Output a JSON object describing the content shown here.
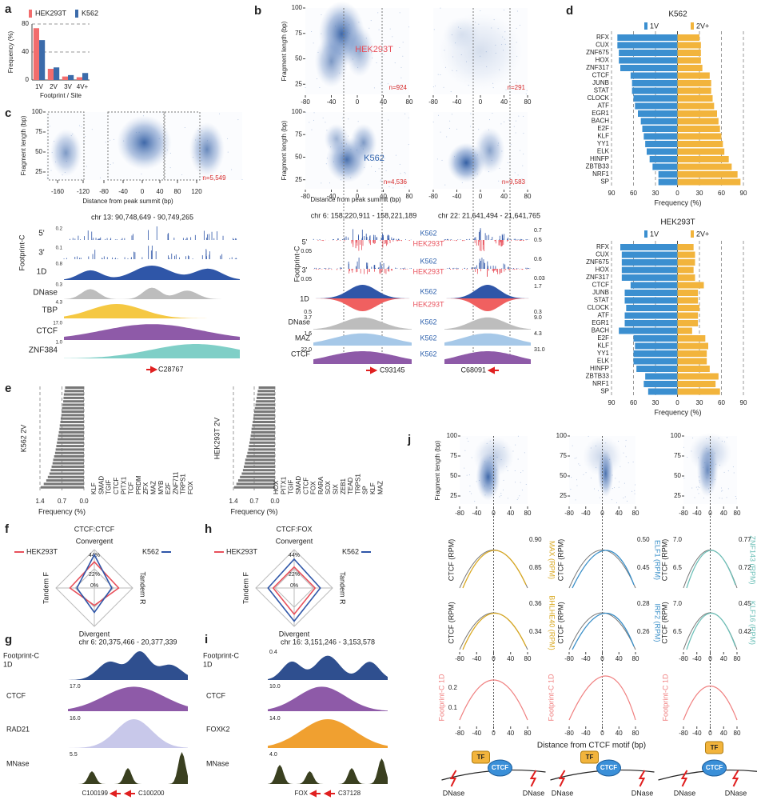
{
  "a": {
    "label": "a",
    "type": "bar",
    "categories": [
      "1V",
      "2V",
      "3V",
      "4V+"
    ],
    "series": [
      {
        "name": "HEK293T",
        "color": "#f26d6d",
        "values": [
          74,
          16,
          5,
          4
        ]
      },
      {
        "name": "K562",
        "color": "#3b6baa",
        "values": [
          57,
          18,
          7,
          10
        ]
      }
    ],
    "ylim": [
      0,
      80
    ],
    "yticks": [
      0,
      40,
      80
    ],
    "grid": true,
    "ylabel": "Frequency (%)",
    "xlabel": "Footprint / Site"
  },
  "b": {
    "label": "b",
    "rows": [
      "HEK293T",
      "K562"
    ],
    "n_labels": [
      "n=924",
      "n=291",
      "n=4,536",
      "n=9,583"
    ],
    "xlim": [
      -80,
      80
    ],
    "xticks": [
      -80,
      -40,
      0,
      40,
      80
    ],
    "ylim": [
      15,
      100
    ],
    "yticks": [
      25,
      50,
      75,
      100
    ],
    "xlabel": "Distance from peak summit (bp)",
    "ylabel": "Fragment length (bp)",
    "loci": [
      "chr 6: 158,220,911 - 158,221,189",
      "chr 22: 21,641,494 - 21,641,765"
    ],
    "locus_ids": [
      "C93145",
      "C68091"
    ],
    "track_group": "Footprint-C",
    "tracks": [
      "5'",
      "3'",
      "1D",
      "DNase",
      "MAZ",
      "CTCF"
    ],
    "cell_labels": [
      "K562",
      "HEK293T",
      "K562",
      "HEK293T",
      "K562",
      "HEK293T",
      "K562",
      "K562",
      "K562"
    ],
    "left_scales": [
      "0.05",
      "0.05",
      "0.5",
      "3.7",
      "1.6",
      "22.0"
    ],
    "right_scales": [
      "0.7",
      "0.5",
      "0.6",
      "0.03",
      "1.7",
      "0.3",
      "9.0",
      "4.3",
      "31.0"
    ]
  },
  "c": {
    "label": "c",
    "xticks": [
      -160,
      -120,
      -80,
      -40,
      0,
      40,
      80,
      120
    ],
    "ylim": [
      15,
      100
    ],
    "yticks": [
      25,
      50,
      75,
      100
    ],
    "n_label": "n=5,549",
    "xlabel": "Distance from peak summit (bp)",
    "ylabel": "Fragment length (bp)",
    "locus": "chr 13: 90,748,649 - 90,749,265",
    "locus_id": "C28767",
    "track_group": "Footprint-C",
    "tracks": [
      "5'",
      "3'",
      "1D",
      "DNase",
      "TBP",
      "CTCF",
      "ZNF384"
    ],
    "scales": [
      "0.2",
      "0.1",
      "0.8",
      "0.3",
      "4.3",
      "17.0",
      "1.0"
    ]
  },
  "d": {
    "label": "d",
    "type": "bar",
    "xlim": [
      -90,
      90
    ],
    "xticks": [
      {
        "value": -90,
        "label": "90"
      },
      {
        "value": -60,
        "label": "60"
      },
      {
        "value": -30,
        "label": "30"
      },
      0,
      30,
      60,
      90
    ],
    "xlabel": "Frequency (%)",
    "charts": [
      {
        "title": "K562",
        "categories": [
          "RFX",
          "CUX",
          "ZNF675",
          "HOX",
          "ZNF317",
          "CTCF",
          "JUNB",
          "STAT",
          "CLOCK",
          "ATF",
          "EGR1",
          "BACH",
          "E2F",
          "KLF",
          "YY1",
          "ELK",
          "HINFP",
          "ZBTB33",
          "NRF1",
          "SP"
        ],
        "series": [
          {
            "name": "1V",
            "color": "#3b8fd0",
            "values": [
              82,
              82,
              80,
              80,
              78,
              64,
              62,
              62,
              60,
              58,
              54,
              50,
              48,
              46,
              44,
              42,
              38,
              34,
              26,
              26
            ]
          },
          {
            "name": "2V+",
            "color": "#f2b43c",
            "values": [
              30,
              32,
              32,
              32,
              34,
              44,
              46,
              46,
              48,
              50,
              54,
              56,
              58,
              60,
              62,
              64,
              70,
              74,
              82,
              86
            ]
          }
        ]
      },
      {
        "title": "HEK293T",
        "categories": [
          "RFX",
          "CUX",
          "ZNF675",
          "HOX",
          "ZNF317",
          "CTCF",
          "JUNB",
          "STAT",
          "CLOCK",
          "ATF",
          "EGR1",
          "BACH",
          "E2F",
          "KLF",
          "YY1",
          "ELK",
          "HINFP",
          "ZBTB33",
          "NRF1",
          "SP"
        ],
        "series": [
          {
            "name": "1V",
            "color": "#3b8fd0",
            "values": [
              78,
              76,
              76,
              76,
              76,
              64,
              72,
              72,
              70,
              72,
              72,
              80,
              60,
              58,
              60,
              60,
              56,
              44,
              46,
              40
            ]
          },
          {
            "name": "2V+",
            "color": "#f2b43c",
            "values": [
              22,
              24,
              24,
              22,
              24,
              36,
              28,
              28,
              30,
              28,
              28,
              20,
              38,
              42,
              40,
              40,
              44,
              56,
              52,
              58
            ]
          }
        ]
      }
    ]
  },
  "e": {
    "label": "e",
    "xlim": [
      1.4,
      0
    ],
    "xticks": [
      1.4,
      0.7,
      {
        "value": 0,
        "label": "0.0"
      }
    ],
    "xlabel": "Frequency (%)",
    "groups": [
      {
        "name": "K562 2V",
        "color": "#2f62ad",
        "motifs": [
          "KLF",
          "SMAD",
          "TGIF",
          "CTCF",
          "PITX1",
          "TCF",
          "PRDM",
          "ZFX",
          "MAZ",
          "MYB",
          "E2F",
          "ZNF711",
          "TRPS1",
          "FOX"
        ],
        "bar_values": [
          0.6,
          0.62,
          0.64,
          0.65,
          0.66,
          0.68,
          0.7,
          0.71,
          0.72,
          0.74,
          0.75,
          0.77,
          0.78,
          0.8,
          0.82,
          0.84,
          0.86,
          0.88,
          0.9,
          0.92,
          0.95,
          0.98,
          1.0,
          1.03,
          1.06,
          1.1,
          1.15,
          1.2,
          1.28,
          1.38
        ]
      },
      {
        "name": "HEK293T 2V",
        "color": "#e8505b",
        "motifs": [
          "HOX",
          "PITX1",
          "TGIF",
          "SMAD",
          "CTCF",
          "FOX",
          "RARA",
          "SOX",
          "SIX",
          "ZEB1",
          "TEAD",
          "TRPS1",
          "SP",
          "KLF",
          "MAZ"
        ],
        "bar_values": [
          0.55,
          0.58,
          0.6,
          0.62,
          0.64,
          0.66,
          0.68,
          0.7,
          0.72,
          0.73,
          0.75,
          0.77,
          0.79,
          0.8,
          0.82,
          0.84,
          0.86,
          0.88,
          0.9,
          0.93,
          0.96,
          1.0,
          1.02,
          1.05,
          1.08,
          1.12,
          1.18,
          1.24,
          1.3,
          1.38
        ]
      }
    ]
  },
  "f": {
    "label": "f",
    "type": "radar",
    "title": "CTCF:CTCF",
    "axes": [
      "Convergent",
      "Tandem R",
      "Divergent",
      "Tandem F"
    ],
    "rticks": [
      {
        "value": 0,
        "label": "0%"
      },
      {
        "value": 22,
        "label": "22%"
      },
      {
        "value": 44,
        "label": "44%"
      }
    ],
    "series": [
      {
        "name": "HEK293T",
        "color": "#e8505b",
        "values": [
          30,
          28,
          20,
          28
        ]
      },
      {
        "name": "K562",
        "color": "#2f56a8",
        "values": [
          38,
          20,
          28,
          20
        ]
      }
    ]
  },
  "h": {
    "label": "h",
    "type": "radar",
    "title": "CTCF:FOX",
    "axes": [
      "Convergent",
      "Tandem R",
      "Divergent",
      "Tandem F"
    ],
    "rticks": [
      {
        "value": 0,
        "label": "0%"
      },
      {
        "value": 22,
        "label": "22%"
      },
      {
        "value": 44,
        "label": "44%"
      }
    ],
    "series": [
      {
        "name": "HEK293T",
        "color": "#e8505b",
        "values": [
          24,
          24,
          30,
          24
        ]
      },
      {
        "name": "K562",
        "color": "#2f56a8",
        "values": [
          33,
          30,
          38,
          30
        ]
      }
    ]
  },
  "g": {
    "label": "g",
    "locus": "chr 6: 20,375,466 - 20,377,339",
    "track_group": "Footprint-C",
    "track_sub": "1D",
    "tracks": [
      "CTCF",
      "RAD21",
      "MNase"
    ],
    "scales": [
      "17.0",
      "16.0",
      "5.5"
    ],
    "ids": [
      "C100199",
      "C100200"
    ]
  },
  "i": {
    "label": "i",
    "locus": "chr 16: 3,151,246 - 3,153,578",
    "track_group": "Footprint-C",
    "track_sub": "1D",
    "tracks": [
      "CTCF",
      "FOXK2",
      "MNase"
    ],
    "scales": [
      "0.4",
      "10.0",
      "14.0",
      "4.0"
    ],
    "ids": [
      "FOX",
      "C37128"
    ]
  },
  "j": {
    "label": "j",
    "xlim": [
      -80,
      80
    ],
    "xticks": [
      -80,
      -40,
      0,
      40,
      80
    ],
    "ylim": [
      15,
      100
    ],
    "yticks": [
      25,
      50,
      75,
      100
    ],
    "ylabel": "Fragment length (bp)",
    "left_label": "CTCF (RPM)",
    "factors": [
      [
        "MAX (RPM)",
        "ELF1 (RPM)",
        "ZNF143 (RPM)"
      ],
      [
        "BHLHE40 (RPM)",
        "IRF2 (RPM)",
        "KLF16 (RPM)"
      ]
    ],
    "right_ticks": [
      [
        [
          "0.90",
          "0.85"
        ],
        [
          "0.50",
          "0.45"
        ],
        [
          "0.77",
          "0.72"
        ]
      ],
      [
        [
          "0.36",
          "0.34"
        ],
        [
          "0.28",
          "0.26"
        ],
        [
          "0.45",
          "0.42"
        ]
      ]
    ],
    "left_ticks": [
      "7.0",
      "6.5"
    ],
    "footprint_label": "Footprint-C 1D",
    "footprint_ticks": [
      "0.2",
      "0.1"
    ],
    "xlabel": "Distance from CTCF motif (bp)",
    "diagram": {
      "tf": "TF",
      "ctcf": "CTCF",
      "dnase": "DNase"
    }
  }
}
